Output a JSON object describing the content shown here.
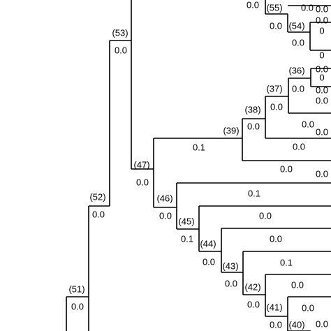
{
  "node_labels": [
    "(55)",
    "(54)",
    "(53)",
    "(36)",
    "(37)",
    "(38)",
    "(39)",
    "(47)",
    "(46)",
    "(45)",
    "(44)",
    "(43)",
    "(42)",
    "(41)",
    "(40)",
    "(52)",
    "(51)"
  ],
  "branch_lengths": [
    "0.0",
    "0.0",
    "0.0",
    "0.0",
    "0.0",
    "0.0",
    "0",
    "0.0",
    "0.0",
    "0",
    "0",
    "0.0",
    "0.0",
    "0.0",
    "0.1",
    "0.0",
    "0.0",
    "0.1",
    "0.0",
    "0.0",
    "0.1",
    "0.0",
    "0.0",
    "0.1",
    "0.0",
    "0.0",
    "0.0",
    "0.0",
    "0.0",
    "0.0",
    "0.0",
    "0.0",
    "0.0",
    "0.0",
    "0.0",
    "0.0",
    "0.0",
    "0.0"
  ]
}
